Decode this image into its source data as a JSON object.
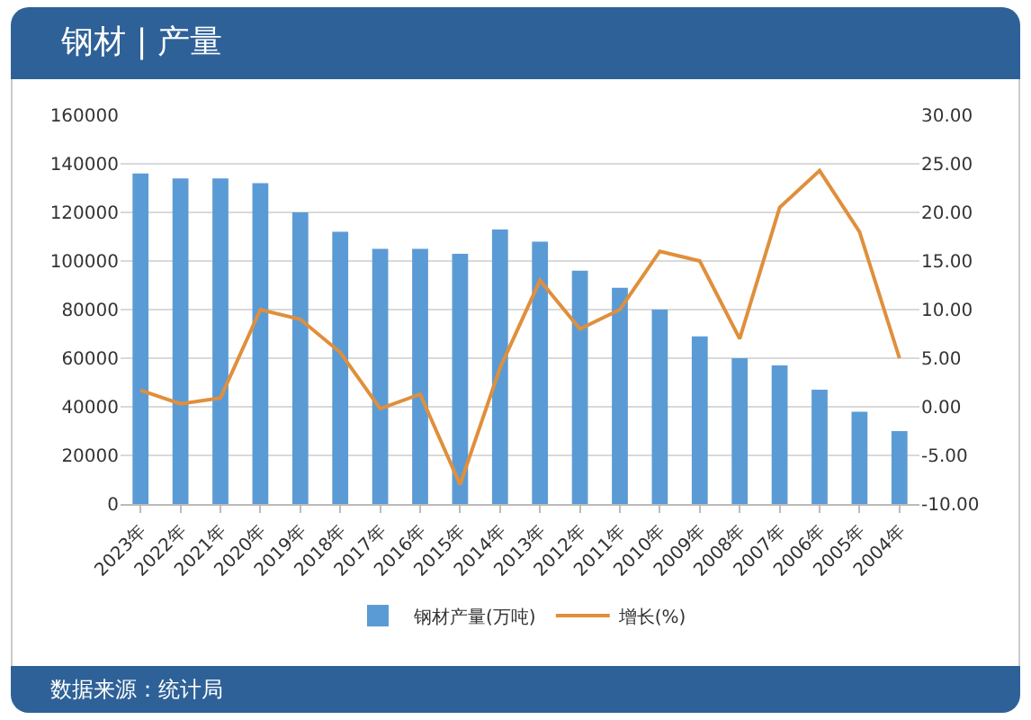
{
  "chart_data": {
    "type": "bar",
    "title": "钢材 | 产量",
    "categories": [
      "2023年",
      "2022年",
      "2021年",
      "2020年",
      "2019年",
      "2018年",
      "2017年",
      "2016年",
      "2015年",
      "2014年",
      "2013年",
      "2012年",
      "2011年",
      "2010年",
      "2009年",
      "2008年",
      "2007年",
      "2006年",
      "2005年",
      "2004年"
    ],
    "series": [
      {
        "name": "钢材产量(万吨)",
        "color": "#5b9bd5",
        "values": [
          136000,
          134000,
          134000,
          132000,
          120000,
          112000,
          105000,
          105000,
          103000,
          113000,
          108000,
          96000,
          89000,
          80000,
          69000,
          60000,
          57000,
          47000,
          38000,
          30000
        ]
      },
      {
        "name": "增长(%)",
        "type": "line",
        "axis": "y2",
        "color": "#e08f3c",
        "values": [
          1.7,
          0.3,
          0.9,
          10,
          9,
          5.6,
          -0.2,
          1.3,
          -8,
          4,
          13,
          8,
          10,
          16,
          15,
          7,
          20.5,
          24.3,
          18,
          5
        ]
      }
    ],
    "ylim": [
      0,
      160000
    ],
    "yticks": [
      0,
      20000,
      40000,
      60000,
      80000,
      100000,
      120000,
      140000,
      160000
    ],
    "y2lim": [
      -10,
      30
    ],
    "y2ticks": [
      {
        "value": -10,
        "label": "-10.00"
      },
      {
        "value": -5,
        "label": "-5.00"
      },
      {
        "value": 0,
        "label": "0.00"
      },
      {
        "value": 5,
        "label": "5.00"
      },
      {
        "value": 10,
        "label": "10.00"
      },
      {
        "value": 15,
        "label": "15.00"
      },
      {
        "value": 20,
        "label": "20.00"
      },
      {
        "value": 25,
        "label": "25.00"
      },
      {
        "value": 30,
        "label": "30.00"
      }
    ],
    "grid": "y",
    "legend": "bottom",
    "marker": "none",
    "line_style": "solid",
    "annotations": [
      "数据来源：统计局"
    ]
  }
}
